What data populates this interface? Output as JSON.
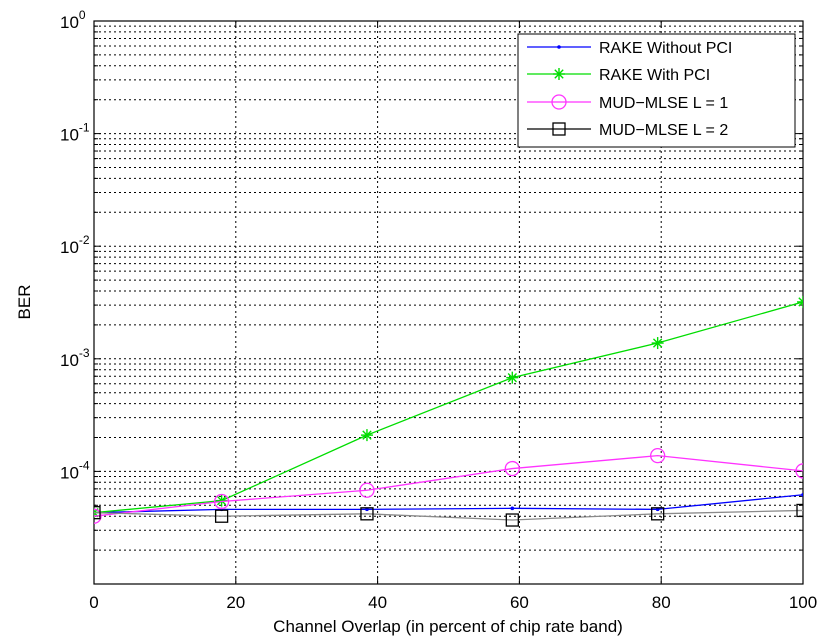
{
  "chart_data": {
    "type": "line",
    "title": "",
    "xlabel": "Channel Overlap (in percent of chip rate band)",
    "ylabel": "BER",
    "xlim": [
      0,
      100
    ],
    "ylim": [
      1e-05,
      1
    ],
    "yscale": "log",
    "grid": true,
    "legend_position": "top-right",
    "x_ticks": [
      0,
      20,
      40,
      60,
      80,
      100
    ],
    "x_tick_labels": [
      "0",
      "20",
      "40",
      "60",
      "80",
      "100"
    ],
    "y_ticks": [
      0.0001,
      0.001,
      0.01,
      0.1,
      1
    ],
    "y_tick_base": "10",
    "y_tick_exponents": [
      "-4",
      "-3",
      "-2",
      "-1",
      "0"
    ],
    "series": [
      {
        "name": "RAKE Without PCI",
        "color": "#0000ff",
        "marker": "point",
        "x": [
          0,
          18,
          38.5,
          59,
          79.5,
          100
        ],
        "y": [
          4.3e-05,
          4.6e-05,
          4.6e-05,
          4.7e-05,
          4.6e-05,
          6.2e-05
        ]
      },
      {
        "name": "RAKE With PCI",
        "color": "#00dd00",
        "marker": "star",
        "x": [
          0,
          18,
          38.5,
          59,
          79.5,
          100
        ],
        "y": [
          4.3e-05,
          5.5e-05,
          0.00021,
          0.00068,
          0.00138,
          0.0032
        ]
      },
      {
        "name": "MUD−MLSE L = 1",
        "color": "#ff33ff",
        "marker": "circle",
        "x": [
          0,
          18,
          38.5,
          59,
          79.5,
          100
        ],
        "y": [
          4e-05,
          5.4e-05,
          6.8e-05,
          0.000106,
          0.000138,
          0.000101
        ]
      },
      {
        "name": "MUD−MLSE L = 2",
        "color": "#000000",
        "line_color": "#8a8a8a",
        "marker": "square",
        "x": [
          0,
          18,
          38.5,
          59,
          79.5,
          100
        ],
        "y": [
          4.3e-05,
          4e-05,
          4.2e-05,
          3.7e-05,
          4.2e-05,
          4.5e-05
        ]
      }
    ]
  }
}
